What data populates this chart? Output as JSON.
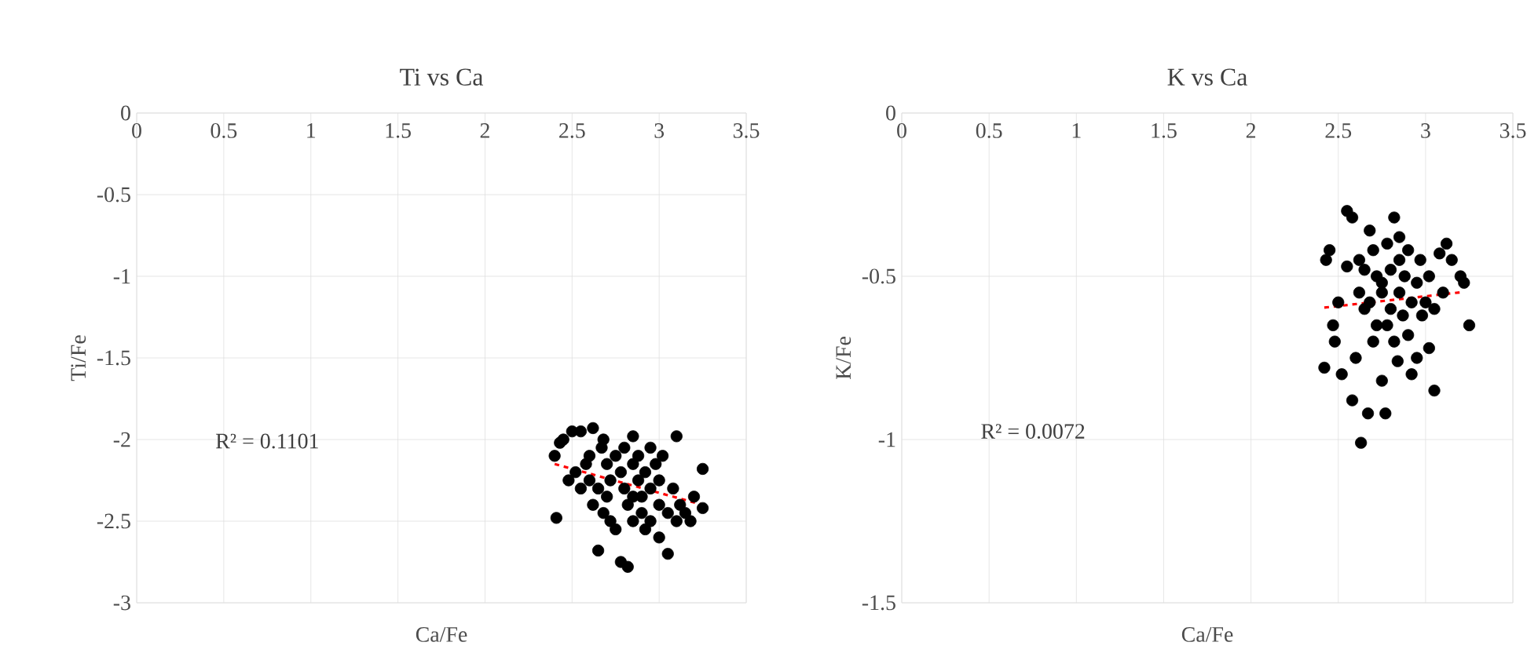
{
  "chart_data": [
    {
      "type": "scatter",
      "title": "Ti vs Ca",
      "xlabel": "Ca/Fe",
      "ylabel": "Ti/Fe",
      "xlim": [
        0,
        3.5
      ],
      "ylim": [
        -3,
        0
      ],
      "xticks": [
        0,
        0.5,
        1,
        1.5,
        2,
        2.5,
        3,
        3.5
      ],
      "yticks": [
        -3,
        -2.5,
        -2,
        -1.5,
        -1,
        -0.5,
        0
      ],
      "grid": true,
      "annotations": [
        "R² = 0.1101"
      ],
      "series": [
        {
          "color": "#000000",
          "marker": "circle",
          "x": [
            2.41,
            2.4,
            2.43,
            2.45,
            2.5,
            2.55,
            2.62,
            2.67,
            2.68,
            2.85,
            2.95,
            3.1,
            2.52,
            2.55,
            2.58,
            2.6,
            2.62,
            2.65,
            2.65,
            2.7,
            2.72,
            2.72,
            2.75,
            2.78,
            2.82,
            2.78,
            2.8,
            2.82,
            2.85,
            2.85,
            2.88,
            2.9,
            2.9,
            2.92,
            2.95,
            2.95,
            3.0,
            3.0,
            3.02,
            3.05,
            3.05,
            3.08,
            3.1,
            3.12,
            3.15,
            3.18,
            3.2,
            3.25,
            3.25,
            2.7,
            2.75,
            2.8,
            2.6,
            2.48,
            2.88,
            2.98,
            2.68,
            2.85,
            2.92,
            3.0
          ],
          "values": [
            -2.48,
            -2.1,
            -2.02,
            -2.0,
            -1.95,
            -1.95,
            -1.93,
            -2.05,
            -2.0,
            -1.98,
            -2.05,
            -1.98,
            -2.2,
            -2.3,
            -2.15,
            -2.25,
            -2.4,
            -2.68,
            -2.3,
            -2.15,
            -2.25,
            -2.5,
            -2.55,
            -2.75,
            -2.78,
            -2.2,
            -2.3,
            -2.4,
            -2.15,
            -2.5,
            -2.25,
            -2.35,
            -2.45,
            -2.2,
            -2.3,
            -2.5,
            -2.25,
            -2.4,
            -2.1,
            -2.7,
            -2.45,
            -2.3,
            -2.5,
            -2.4,
            -2.45,
            -2.5,
            -2.35,
            -2.18,
            -2.42,
            -2.35,
            -2.1,
            -2.05,
            -2.1,
            -2.25,
            -2.1,
            -2.15,
            -2.45,
            -2.35,
            -2.55,
            -2.6
          ]
        },
        {
          "type": "line",
          "color": "#ff0000",
          "line_style": "dashed",
          "marker": "none",
          "x": [
            2.4,
            3.25
          ],
          "values": [
            -2.15,
            -2.4
          ]
        }
      ]
    },
    {
      "type": "scatter",
      "title": "K vs Ca",
      "xlabel": "Ca/Fe",
      "ylabel": "K/Fe",
      "xlim": [
        0,
        3.5
      ],
      "ylim": [
        -1.5,
        0
      ],
      "xticks": [
        0,
        0.5,
        1,
        1.5,
        2,
        2.5,
        3,
        3.5
      ],
      "yticks": [
        -1.5,
        -1,
        -0.5,
        0
      ],
      "grid": true,
      "annotations": [
        "R² = 0.0072"
      ],
      "series": [
        {
          "color": "#000000",
          "marker": "circle",
          "x": [
            2.42,
            2.43,
            2.45,
            2.47,
            2.48,
            2.52,
            2.55,
            2.58,
            2.55,
            2.58,
            2.6,
            2.62,
            2.63,
            2.65,
            2.67,
            2.68,
            2.7,
            2.72,
            2.72,
            2.75,
            2.75,
            2.77,
            2.78,
            2.8,
            2.8,
            2.82,
            2.82,
            2.85,
            2.85,
            2.87,
            2.88,
            2.9,
            2.9,
            2.92,
            2.95,
            2.95,
            2.97,
            3.0,
            3.02,
            3.02,
            3.05,
            3.08,
            3.1,
            3.12,
            3.15,
            3.2,
            3.22,
            3.25,
            2.62,
            2.68,
            2.78,
            2.92,
            2.98,
            2.7,
            2.65,
            2.5,
            2.85,
            3.05,
            2.75,
            2.84
          ],
          "values": [
            -0.78,
            -0.45,
            -0.42,
            -0.65,
            -0.7,
            -0.8,
            -0.3,
            -0.32,
            -0.47,
            -0.88,
            -0.75,
            -0.45,
            -1.01,
            -0.6,
            -0.92,
            -0.36,
            -0.42,
            -0.5,
            -0.65,
            -0.55,
            -0.82,
            -0.92,
            -0.4,
            -0.48,
            -0.6,
            -0.32,
            -0.7,
            -0.45,
            -0.55,
            -0.62,
            -0.5,
            -0.42,
            -0.68,
            -0.8,
            -0.75,
            -0.52,
            -0.45,
            -0.58,
            -0.5,
            -0.72,
            -0.85,
            -0.43,
            -0.55,
            -0.4,
            -0.45,
            -0.5,
            -0.52,
            -0.65,
            -0.55,
            -0.58,
            -0.65,
            -0.58,
            -0.62,
            -0.7,
            -0.48,
            -0.58,
            -0.38,
            -0.6,
            -0.52,
            -0.76
          ]
        },
        {
          "type": "line",
          "color": "#ff0000",
          "line_style": "dashed",
          "marker": "none",
          "x": [
            2.42,
            3.22
          ],
          "values": [
            -0.596,
            -0.548
          ]
        }
      ]
    }
  ]
}
